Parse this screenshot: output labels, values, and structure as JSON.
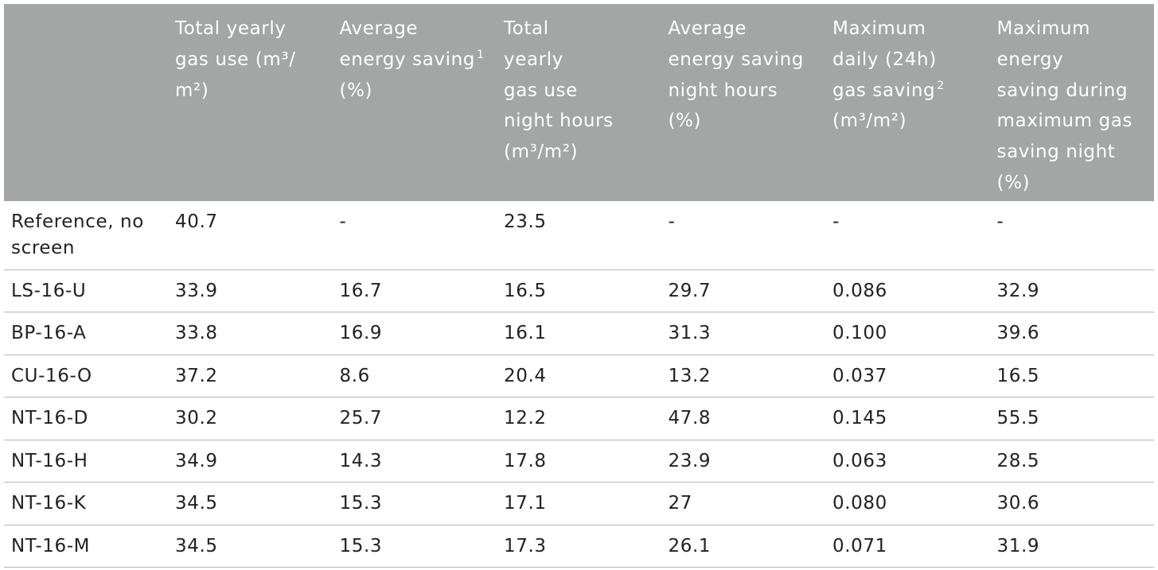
{
  "headers": [
    {
      "lines": [
        ""
      ],
      "sup": ""
    },
    {
      "lines": [
        "Total yearly",
        "gas use (m³/",
        "m²)"
      ],
      "sup": ""
    },
    {
      "lines": [
        "Average",
        "energy saving",
        "(%)"
      ],
      "sup": "1",
      "sup_line": 1
    },
    {
      "lines": [
        "Total",
        "yearly",
        "gas use",
        "night hours",
        "(m³/m²)"
      ],
      "sup": ""
    },
    {
      "lines": [
        "Average",
        "energy saving",
        "night hours",
        "(%)"
      ],
      "sup": ""
    },
    {
      "lines": [
        "Maximum",
        "daily (24h)",
        "gas saving",
        "(m³/m²)"
      ],
      "sup": "2",
      "sup_line": 2
    },
    {
      "lines": [
        "Maximum",
        "energy",
        "saving during",
        "maximum gas",
        "saving night",
        "(%)"
      ],
      "sup": ""
    }
  ],
  "rows": [
    {
      "label_lines": [
        "Reference, no",
        "screen"
      ],
      "cells": [
        "40.7",
        "-",
        "23.5",
        "-",
        "-",
        "-"
      ]
    },
    {
      "label_lines": [
        "LS-16-U"
      ],
      "cells": [
        "33.9",
        "16.7",
        "16.5",
        "29.7",
        "0.086",
        "32.9"
      ]
    },
    {
      "label_lines": [
        "BP-16-A"
      ],
      "cells": [
        "33.8",
        "16.9",
        "16.1",
        "31.3",
        "0.100",
        "39.6"
      ]
    },
    {
      "label_lines": [
        "CU-16-O"
      ],
      "cells": [
        "37.2",
        "8.6",
        "20.4",
        "13.2",
        "0.037",
        "16.5"
      ]
    },
    {
      "label_lines": [
        "NT-16-D"
      ],
      "cells": [
        "30.2",
        "25.7",
        "12.2",
        "47.8",
        "0.145",
        "55.5"
      ]
    },
    {
      "label_lines": [
        "NT-16-H"
      ],
      "cells": [
        "34.9",
        "14.3",
        "17.8",
        "23.9",
        "0.063",
        "28.5"
      ]
    },
    {
      "label_lines": [
        "NT-16-K"
      ],
      "cells": [
        "34.5",
        "15.3",
        "17.1",
        "27",
        "0.080",
        "30.6"
      ]
    },
    {
      "label_lines": [
        "NT-16-M"
      ],
      "cells": [
        "34.5",
        "15.3",
        "17.3",
        "26.1",
        "0.071",
        "31.9"
      ]
    }
  ],
  "colors": {
    "header_bg": "#a3a6a5",
    "header_text": "#ffffff",
    "body_text": "#222222",
    "rule": "#b4b4b4"
  }
}
